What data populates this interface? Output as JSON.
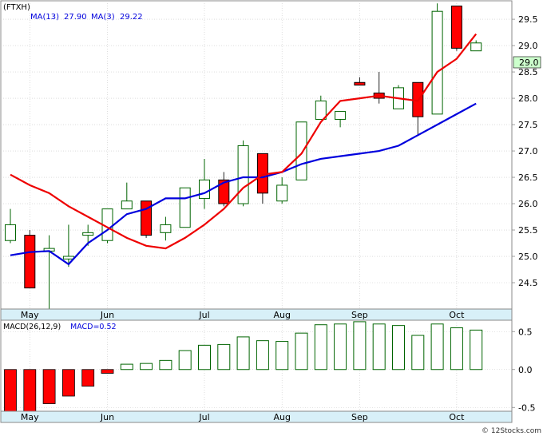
{
  "header": {
    "symbol": "(FTXH)",
    "ma13_label": "MA(13)",
    "ma13_value": "27.90",
    "ma3_label": "MA(3)",
    "ma3_value": "29.22",
    "price_tag": "29.0",
    "colors": {
      "up": "#006400",
      "down": "#ff0000",
      "ma13": "#0000dd",
      "ma3": "#ee0000",
      "axisband": "#d8f0f8"
    }
  },
  "macd_header": {
    "label": "MACD(26,12,9)",
    "value_label": "MACD=0.52"
  },
  "watermark": "© 12Stocks.com",
  "chart_data": [
    {
      "type": "candlestick",
      "x_labels": [
        "May",
        "Jun",
        "Jul",
        "Aug",
        "Sep",
        "Oct"
      ],
      "x_label_week_index": [
        1,
        5,
        10,
        14,
        18,
        23
      ],
      "y_ticks": [
        24.5,
        25.0,
        25.5,
        26.0,
        26.5,
        27.0,
        27.5,
        28.0,
        28.5,
        29.0,
        29.5
      ],
      "ylim": [
        24.0,
        29.85
      ],
      "grid": true,
      "candles": [
        {
          "o": 25.3,
          "h": 25.9,
          "l": 25.25,
          "c": 25.6
        },
        {
          "o": 25.4,
          "h": 25.5,
          "l": 24.4,
          "c": 24.4
        },
        {
          "o": 25.1,
          "h": 25.4,
          "l": 23.8,
          "c": 25.15
        },
        {
          "o": 24.95,
          "h": 25.6,
          "l": 24.8,
          "c": 25.0
        },
        {
          "o": 25.4,
          "h": 25.6,
          "l": 25.2,
          "c": 25.45
        },
        {
          "o": 25.3,
          "h": 25.9,
          "l": 25.25,
          "c": 25.9
        },
        {
          "o": 25.9,
          "h": 26.4,
          "l": 25.9,
          "c": 26.05
        },
        {
          "o": 26.05,
          "h": 26.05,
          "l": 25.35,
          "c": 25.4
        },
        {
          "o": 25.45,
          "h": 25.75,
          "l": 25.3,
          "c": 25.6
        },
        {
          "o": 25.55,
          "h": 26.3,
          "l": 25.55,
          "c": 26.3
        },
        {
          "o": 26.1,
          "h": 26.85,
          "l": 25.9,
          "c": 26.45
        },
        {
          "o": 26.45,
          "h": 26.6,
          "l": 25.95,
          "c": 26.0
        },
        {
          "o": 26.0,
          "h": 27.2,
          "l": 25.95,
          "c": 27.1
        },
        {
          "o": 26.95,
          "h": 26.95,
          "l": 26.0,
          "c": 26.2
        },
        {
          "o": 26.05,
          "h": 26.5,
          "l": 26.0,
          "c": 26.35
        },
        {
          "o": 26.45,
          "h": 27.55,
          "l": 26.45,
          "c": 27.55
        },
        {
          "o": 27.6,
          "h": 28.05,
          "l": 27.6,
          "c": 27.95
        },
        {
          "o": 27.6,
          "h": 27.75,
          "l": 27.45,
          "c": 27.75
        },
        {
          "o": 28.3,
          "h": 28.4,
          "l": 28.25,
          "c": 28.25
        },
        {
          "o": 28.1,
          "h": 28.5,
          "l": 27.9,
          "c": 28.0
        },
        {
          "o": 27.8,
          "h": 28.25,
          "l": 27.8,
          "c": 28.2
        },
        {
          "o": 28.3,
          "h": 28.3,
          "l": 27.3,
          "c": 27.65
        },
        {
          "o": 27.7,
          "h": 29.8,
          "l": 27.7,
          "c": 29.65
        },
        {
          "o": 29.75,
          "h": 29.75,
          "l": 28.9,
          "c": 28.95
        },
        {
          "o": 28.9,
          "h": 29.1,
          "l": 28.9,
          "c": 29.05
        }
      ],
      "series": [
        {
          "name": "MA(13)",
          "color": "#0000dd",
          "start_index": 0,
          "values": [
            25.02,
            25.08,
            25.1,
            24.85,
            25.25,
            25.5,
            25.8,
            25.9,
            26.1,
            26.1,
            26.2,
            26.4,
            26.5,
            26.5,
            26.6,
            26.75,
            26.85,
            26.9,
            26.95,
            27.0,
            27.1,
            27.3,
            27.5,
            27.7,
            27.9
          ]
        },
        {
          "name": "MA(3)",
          "color": "#ee0000",
          "start_index": 0,
          "values": [
            26.55,
            26.35,
            26.2,
            25.95,
            25.75,
            25.55,
            25.35,
            25.2,
            25.15,
            25.35,
            25.6,
            25.9,
            26.3,
            26.55,
            26.6,
            26.95,
            27.55,
            27.95,
            28.0,
            28.05,
            28.0,
            27.95,
            28.5,
            28.75,
            29.22
          ]
        }
      ]
    },
    {
      "type": "bar",
      "title": "MACD(26,12,9)",
      "x_labels": [
        "May",
        "Jun",
        "Jul",
        "Aug",
        "Sep",
        "Oct"
      ],
      "y_ticks": [
        -0.5,
        0.0,
        0.5
      ],
      "ylim": [
        -0.55,
        0.65
      ],
      "grid": true,
      "values": [
        -0.55,
        -0.55,
        -0.45,
        -0.35,
        -0.22,
        -0.05,
        0.07,
        0.08,
        0.12,
        0.25,
        0.32,
        0.33,
        0.43,
        0.38,
        0.37,
        0.48,
        0.59,
        0.6,
        0.63,
        0.6,
        0.58,
        0.45,
        0.6,
        0.55,
        0.52
      ]
    }
  ]
}
